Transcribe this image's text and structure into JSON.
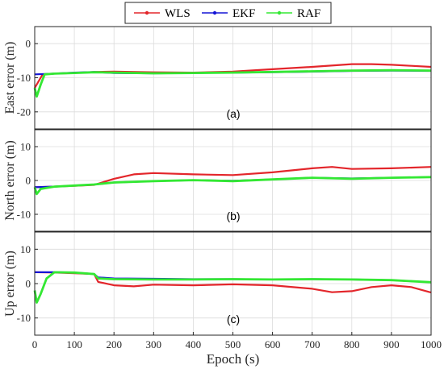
{
  "chart_data": {
    "type": "line",
    "xlabel": "Epoch (s)",
    "xlim": [
      0,
      1000
    ],
    "xticks": [
      0,
      100,
      200,
      300,
      400,
      500,
      600,
      700,
      800,
      900,
      1000
    ],
    "legend": {
      "placement": "top-center",
      "entries": [
        {
          "name": "WLS",
          "color": "#e3262b"
        },
        {
          "name": "EKF",
          "color": "#1515d6"
        },
        {
          "name": "RAF",
          "color": "#33e833"
        }
      ]
    },
    "grid": true,
    "panels": [
      {
        "tag": "(a)",
        "ylabel": "East error (m)",
        "ylim": [
          -25,
          5
        ],
        "yticks": [
          0,
          -10,
          -20
        ],
        "series": [
          {
            "name": "WLS",
            "x": [
              0,
              20,
              50,
              100,
              150,
              200,
              300,
              400,
              500,
              600,
              700,
              800,
              850,
              900,
              950,
              1000
            ],
            "y": [
              -13,
              -9,
              -8.8,
              -8.6,
              -8.3,
              -8.2,
              -8.4,
              -8.5,
              -8.2,
              -7.5,
              -6.8,
              -6.0,
              -6.0,
              -6.2,
              -6.5,
              -6.8
            ]
          },
          {
            "name": "EKF",
            "x": [
              0,
              50,
              100,
              150,
              200,
              300,
              400,
              500,
              600,
              700,
              800,
              900,
              1000
            ],
            "y": [
              -9,
              -8.8,
              -8.5,
              -8.3,
              -8.6,
              -8.7,
              -8.6,
              -8.5,
              -8.4,
              -8.2,
              -8.0,
              -7.9,
              -8.0
            ]
          },
          {
            "name": "RAF",
            "x": [
              0,
              5,
              15,
              25,
              50,
              100,
              150,
              200,
              300,
              400,
              500,
              600,
              700,
              800,
              900,
              1000
            ],
            "y": [
              -13,
              -15.5,
              -12,
              -9,
              -8.8,
              -8.6,
              -8.4,
              -8.5,
              -8.7,
              -8.6,
              -8.5,
              -8.3,
              -8.1,
              -7.9,
              -7.8,
              -7.9
            ]
          }
        ]
      },
      {
        "tag": "(b)",
        "ylabel": "North error (m)",
        "ylim": [
          -15,
          15
        ],
        "yticks": [
          10,
          0,
          -10
        ],
        "series": [
          {
            "name": "WLS",
            "x": [
              0,
              50,
              100,
              150,
              200,
              250,
              300,
              400,
              500,
              600,
              700,
              750,
              800,
              900,
              1000
            ],
            "y": [
              -2,
              -1.8,
              -1.6,
              -1.3,
              0.5,
              1.8,
              2.2,
              1.8,
              1.6,
              2.4,
              3.6,
              4.0,
              3.4,
              3.6,
              4.0
            ]
          },
          {
            "name": "EKF",
            "x": [
              0,
              50,
              100,
              150,
              200,
              300,
              400,
              500,
              600,
              700,
              800,
              900,
              1000
            ],
            "y": [
              -2,
              -1.8,
              -1.5,
              -1.2,
              -0.6,
              -0.2,
              0.1,
              -0.1,
              0.3,
              0.8,
              0.6,
              0.8,
              1.0
            ]
          },
          {
            "name": "RAF",
            "x": [
              0,
              5,
              15,
              30,
              50,
              100,
              150,
              200,
              300,
              400,
              500,
              600,
              700,
              800,
              900,
              1000
            ],
            "y": [
              -2,
              -4,
              -2.5,
              -2.2,
              -1.8,
              -1.5,
              -1.2,
              -0.6,
              -0.2,
              0.1,
              -0.2,
              0.3,
              0.8,
              0.5,
              0.8,
              1.0
            ]
          }
        ]
      },
      {
        "tag": "(c)",
        "ylabel": "Up error (m)",
        "ylim": [
          -15,
          15
        ],
        "yticks": [
          10,
          0,
          -10
        ],
        "series": [
          {
            "name": "WLS",
            "x": [
              0,
              50,
              100,
              150,
              160,
              200,
              250,
              300,
              400,
              500,
              600,
              700,
              750,
              800,
              850,
              900,
              950,
              1000
            ],
            "y": [
              3.3,
              3.2,
              3.0,
              2.8,
              0.5,
              -0.5,
              -0.8,
              -0.3,
              -0.5,
              -0.2,
              -0.5,
              -1.5,
              -2.5,
              -2.2,
              -1.0,
              -0.5,
              -1.0,
              -2.6
            ]
          },
          {
            "name": "EKF",
            "x": [
              0,
              50,
              100,
              150,
              160,
              200,
              300,
              400,
              500,
              600,
              700,
              800,
              900,
              1000
            ],
            "y": [
              3.3,
              3.3,
              3.2,
              2.8,
              1.8,
              1.5,
              1.4,
              1.3,
              1.3,
              1.2,
              1.3,
              1.2,
              1.0,
              0.4
            ]
          },
          {
            "name": "RAF",
            "x": [
              0,
              5,
              15,
              30,
              50,
              100,
              150,
              160,
              200,
              300,
              400,
              500,
              600,
              700,
              800,
              900,
              1000
            ],
            "y": [
              -2,
              -5.5,
              -3,
              1.5,
              3.3,
              3.2,
              2.8,
              1.5,
              1.3,
              1.2,
              1.2,
              1.3,
              1.2,
              1.3,
              1.2,
              1.0,
              0.4
            ]
          }
        ]
      }
    ]
  }
}
